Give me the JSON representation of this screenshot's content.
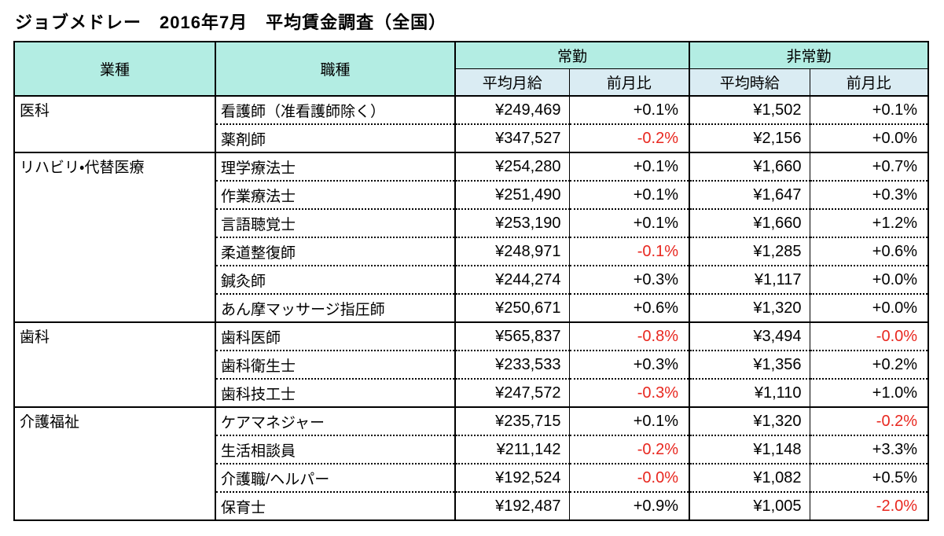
{
  "chart_data": {
    "type": "table",
    "title": "ジョブメドレー　2016年7月　平均賃金調査（全国）",
    "headers": {
      "industry": "業種",
      "occupation": "職種",
      "fulltime_group": "常勤",
      "parttime_group": "非常勤",
      "avg_monthly_salary": "平均月給",
      "avg_hourly_wage": "平均時給",
      "month_over_month": "前月比"
    },
    "groups": [
      {
        "industry": "医科",
        "rows": [
          {
            "occupation": "看護師（准看護師除く）",
            "monthly_salary": "¥249,469",
            "monthly_change": "+0.1%",
            "hourly_wage": "¥1,502",
            "hourly_change": "+0.1%"
          },
          {
            "occupation": "薬剤師",
            "monthly_salary": "¥347,527",
            "monthly_change": "-0.2%",
            "hourly_wage": "¥2,156",
            "hourly_change": "+0.0%"
          }
        ]
      },
      {
        "industry": "リハビリ・代替医療",
        "rows": [
          {
            "occupation": "理学療法士",
            "monthly_salary": "¥254,280",
            "monthly_change": "+0.1%",
            "hourly_wage": "¥1,660",
            "hourly_change": "+0.7%"
          },
          {
            "occupation": "作業療法士",
            "monthly_salary": "¥251,490",
            "monthly_change": "+0.1%",
            "hourly_wage": "¥1,647",
            "hourly_change": "+0.3%"
          },
          {
            "occupation": "言語聴覚士",
            "monthly_salary": "¥253,190",
            "monthly_change": "+0.1%",
            "hourly_wage": "¥1,660",
            "hourly_change": "+1.2%"
          },
          {
            "occupation": "柔道整復師",
            "monthly_salary": "¥248,971",
            "monthly_change": "-0.1%",
            "hourly_wage": "¥1,285",
            "hourly_change": "+0.6%"
          },
          {
            "occupation": "鍼灸師",
            "monthly_salary": "¥244,274",
            "monthly_change": "+0.3%",
            "hourly_wage": "¥1,117",
            "hourly_change": "+0.0%"
          },
          {
            "occupation": "あん摩マッサージ指圧師",
            "monthly_salary": "¥250,671",
            "monthly_change": "+0.6%",
            "hourly_wage": "¥1,320",
            "hourly_change": "+0.0%"
          }
        ]
      },
      {
        "industry": "歯科",
        "rows": [
          {
            "occupation": "歯科医師",
            "monthly_salary": "¥565,837",
            "monthly_change": "-0.8%",
            "hourly_wage": "¥3,494",
            "hourly_change": "-0.0%"
          },
          {
            "occupation": "歯科衛生士",
            "monthly_salary": "¥233,533",
            "monthly_change": "+0.3%",
            "hourly_wage": "¥1,356",
            "hourly_change": "+0.2%"
          },
          {
            "occupation": "歯科技工士",
            "monthly_salary": "¥247,572",
            "monthly_change": "-0.3%",
            "hourly_wage": "¥1,110",
            "hourly_change": "+1.0%"
          }
        ]
      },
      {
        "industry": "介護福祉",
        "rows": [
          {
            "occupation": "ケアマネジャー",
            "monthly_salary": "¥235,715",
            "monthly_change": "+0.1%",
            "hourly_wage": "¥1,320",
            "hourly_change": "-0.2%"
          },
          {
            "occupation": "生活相談員",
            "monthly_salary": "¥211,142",
            "monthly_change": "-0.2%",
            "hourly_wage": "¥1,148",
            "hourly_change": "+3.3%"
          },
          {
            "occupation": "介護職/ヘルパー",
            "monthly_salary": "¥192,524",
            "monthly_change": "-0.0%",
            "hourly_wage": "¥1,082",
            "hourly_change": "+0.5%"
          },
          {
            "occupation": "保育士",
            "monthly_salary": "¥192,487",
            "monthly_change": "+0.9%",
            "hourly_wage": "¥1,005",
            "hourly_change": "-2.0%"
          }
        ]
      }
    ]
  },
  "colors": {
    "header_fill": "#b3ede3",
    "subheader_fill": "#daecf3",
    "negative_text": "#e8271f",
    "text": "#000000",
    "border": "#000000",
    "background": "#ffffff"
  }
}
